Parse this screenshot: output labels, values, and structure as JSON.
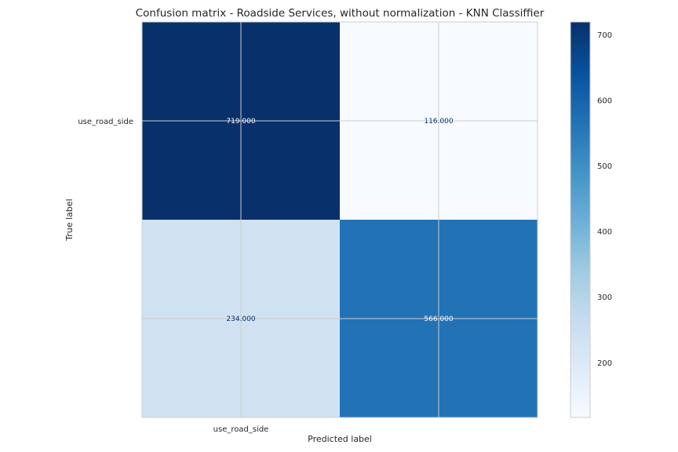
{
  "chart_data": {
    "type": "heatmap",
    "title": "Confusion matrix - Roadside Services, without normalization - KNN Classiffier",
    "xlabel": "Predicted label",
    "ylabel": "True label",
    "x_tick_labels": [
      "use_road_side",
      ""
    ],
    "y_tick_labels": [
      "use_road_side",
      ""
    ],
    "matrix": [
      [
        719,
        116
      ],
      [
        234,
        566
      ]
    ],
    "cell_labels": [
      [
        "719.000",
        "116.000"
      ],
      [
        "234.000",
        "566.000"
      ]
    ],
    "colormap": "Blues",
    "colorbar": {
      "range": [
        116,
        719
      ],
      "ticks": [
        200,
        300,
        400,
        500,
        600,
        700
      ],
      "tick_labels": [
        "200",
        "300",
        "400",
        "500",
        "600",
        "700"
      ]
    },
    "grid": true
  }
}
